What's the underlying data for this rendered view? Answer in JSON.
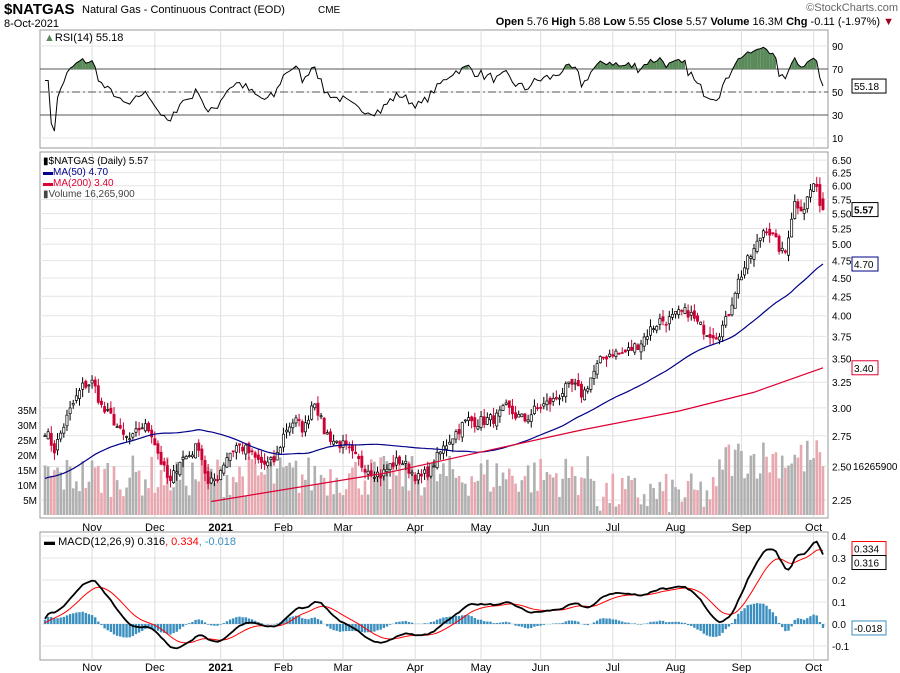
{
  "header": {
    "symbol": "$NATGAS",
    "name": "Natural Gas - Continuous Contract (EOD)",
    "exchange": "CME",
    "date": "8-Oct-2021",
    "brand": "©StockCharts.com",
    "open_label": "Open",
    "open": "5.76",
    "high_label": "High",
    "high": "5.88",
    "low_label": "Low",
    "low": "5.55",
    "close_label": "Close",
    "close": "5.57",
    "volume_label": "Volume",
    "volume": "16.3M",
    "chg_label": "Chg",
    "chg": "-0.11 (-1.97%)"
  },
  "colors": {
    "up": "#000000",
    "down": "#cc0033",
    "ma50": "#000088",
    "ma200": "#dd0033",
    "vol_up": "#b0b0b0",
    "vol_down": "#e8a8b0",
    "rsi_fill": "#5a8a5a",
    "macd": "#000000",
    "signal": "#ff0000",
    "hist": "#3a8fbf"
  },
  "chart_data": [
    {
      "type": "line",
      "title": "RSI(14) 55.18",
      "legend": "RSI(14) 55.18",
      "last_label": "55.18",
      "ylim": [
        0,
        100
      ],
      "ticks": [
        "90",
        "70",
        "50",
        "30",
        "10"
      ],
      "bands": [
        30,
        50,
        70
      ]
    },
    {
      "type": "candlestick",
      "title": "$NATGAS (Daily) 5.57",
      "scale": "log",
      "ylim": [
        2.22,
        6.6
      ],
      "ticks": [
        "6.50",
        "6.25",
        "6.00",
        "5.75",
        "5.50",
        "5.25",
        "5.00",
        "4.75",
        "4.50",
        "4.25",
        "4.00",
        "3.75",
        "3.50",
        "3.25",
        "3.00",
        "2.75",
        "2.50",
        "2.25"
      ],
      "legend": [
        {
          "label": "$NATGAS (Daily) 5.57"
        },
        {
          "label": "MA(50) 4.70"
        },
        {
          "label": "MA(200) 3.40"
        },
        {
          "label": "Volume 16,265,900"
        }
      ],
      "last_close_label": "5.57",
      "ma50_label": "4.70",
      "ma200_label": "3.40",
      "volume_last_label": "16265900",
      "closes_sampled_every_3_days": [
        2.8,
        2.63,
        2.85,
        3.05,
        3.22,
        3.25,
        2.98,
        2.91,
        2.75,
        2.71,
        2.84,
        2.8,
        2.55,
        2.36,
        2.55,
        2.59,
        2.67,
        2.35,
        2.43,
        2.59,
        2.67,
        2.63,
        2.55,
        2.51,
        2.55,
        2.8,
        2.89,
        2.8,
        3.1,
        2.8,
        2.71,
        2.67,
        2.59,
        2.51,
        2.47,
        2.43,
        2.51,
        2.55,
        2.47,
        2.4,
        2.47,
        2.59,
        2.71,
        2.8,
        2.89,
        2.87,
        2.89,
        2.91,
        3.0,
        2.93,
        2.89,
        2.98,
        3.03,
        3.07,
        3.17,
        3.22,
        3.12,
        3.33,
        3.5,
        3.57,
        3.55,
        3.6,
        3.68,
        3.83,
        3.94,
        3.95,
        4.02,
        4.05,
        3.89,
        3.8,
        3.77,
        3.95,
        4.4,
        4.7,
        4.95,
        5.3,
        5.06,
        4.8,
        5.7,
        5.6,
        6.05,
        5.57
      ],
      "ma200_points": [
        [
          53,
          2.24
        ],
        [
          109,
          2.45
        ],
        [
          140,
          2.62
        ],
        [
          171,
          2.8
        ],
        [
          202,
          2.97
        ],
        [
          226,
          3.15
        ],
        [
          248,
          3.4
        ]
      ],
      "volume_axis": {
        "ticks": [
          "35M",
          "30M",
          "25M",
          "20M",
          "15M",
          "10M",
          "5M"
        ],
        "max_millions": 35
      }
    },
    {
      "type": "line",
      "title": "MACD(12,26,9)",
      "legend_macd": "MACD(12,26,9) 0.316",
      "legend_signal": ", 0.334",
      "legend_hist": ", -0.018",
      "ylim": [
        -0.13,
        0.42
      ],
      "ticks": [
        "0.4",
        "0.3",
        "0.2",
        "0.1",
        "0.0",
        "-0.1"
      ],
      "last_macd": "0.316",
      "last_signal": "0.334",
      "last_hist": "-0.018"
    }
  ],
  "x_axis": {
    "bars": 249,
    "months": [
      {
        "label": "Nov",
        "i": 15
      },
      {
        "label": "Dec",
        "i": 35
      },
      {
        "label": "2021",
        "i": 56,
        "bold": true
      },
      {
        "label": "Feb",
        "i": 76
      },
      {
        "label": "Mar",
        "i": 95
      },
      {
        "label": "Apr",
        "i": 118
      },
      {
        "label": "May",
        "i": 139
      },
      {
        "label": "Jun",
        "i": 158
      },
      {
        "label": "Jul",
        "i": 181
      },
      {
        "label": "Aug",
        "i": 201
      },
      {
        "label": "Sep",
        "i": 222
      },
      {
        "label": "Oct",
        "i": 245
      }
    ]
  }
}
